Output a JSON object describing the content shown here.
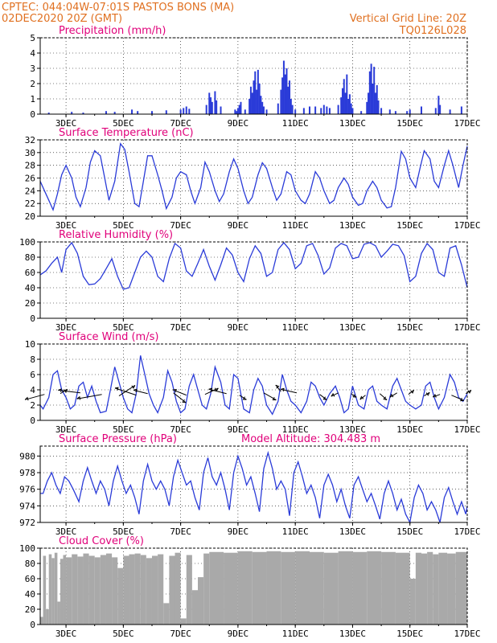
{
  "header": {
    "line1": "CPTEC:  044:04W-07:01S  PASTOS BONS (MA)",
    "line2": "02DEC2020 20Z (GMT)",
    "grid_note": "Vertical Grid Line: 20Z",
    "code": "TQ0126L028",
    "color": "#e07020"
  },
  "colors": {
    "title": "#e0007a",
    "line": "#2a3bd8",
    "bar": "#2a3bd8",
    "cloud": "#a9a9a9"
  },
  "x_axis": {
    "labels": [
      "3DEC",
      "5DEC",
      "7DEC",
      "9DEC",
      "11DEC",
      "13DEC",
      "15DEC",
      "17DEC"
    ],
    "days": [
      3,
      5,
      7,
      9,
      11,
      13,
      15,
      17
    ],
    "range_days": [
      2.1,
      17.0
    ]
  },
  "chart_data": [
    {
      "id": "precip",
      "type": "bar",
      "title": "Precipitation (mm/h)",
      "ylim": [
        0,
        5
      ],
      "yticks": [
        0,
        1,
        2,
        3,
        4,
        5
      ],
      "x": [
        2.4,
        3.2,
        3.6,
        4.4,
        4.7,
        5.3,
        5.5,
        6.0,
        6.5,
        7.0,
        7.1,
        7.2,
        7.3,
        7.9,
        8.0,
        8.05,
        8.1,
        8.2,
        8.25,
        8.4,
        8.9,
        8.95,
        9.0,
        9.05,
        9.1,
        9.25,
        9.4,
        9.45,
        9.5,
        9.55,
        9.6,
        9.65,
        9.7,
        9.75,
        9.8,
        9.85,
        9.9,
        10.0,
        10.4,
        10.5,
        10.55,
        10.6,
        10.65,
        10.7,
        10.75,
        10.8,
        10.85,
        10.9,
        11.0,
        11.3,
        11.5,
        11.7,
        11.9,
        12.0,
        12.1,
        12.2,
        12.5,
        12.6,
        12.65,
        12.7,
        12.75,
        12.8,
        12.85,
        12.9,
        12.95,
        13.0,
        13.3,
        13.5,
        13.55,
        13.6,
        13.65,
        13.7,
        13.75,
        13.8,
        13.85,
        13.9,
        14.0,
        14.3,
        14.5,
        14.9,
        15.0,
        15.4,
        15.9,
        16.0,
        16.05,
        16.4,
        16.8
      ],
      "values": [
        0.1,
        0.15,
        0.1,
        0.2,
        0.15,
        0.3,
        0.2,
        0.2,
        0.25,
        0.3,
        0.4,
        0.5,
        0.35,
        0.6,
        1.4,
        1.1,
        0.8,
        1.5,
        0.9,
        0.5,
        0.3,
        0.2,
        0.4,
        0.6,
        0.8,
        0.3,
        1.0,
        1.8,
        1.4,
        2.2,
        2.8,
        1.6,
        2.9,
        2.0,
        1.2,
        0.8,
        0.5,
        0.3,
        0.7,
        1.6,
        2.4,
        3.5,
        2.6,
        3.0,
        1.8,
        2.2,
        1.0,
        0.6,
        0.3,
        0.4,
        0.5,
        0.5,
        0.4,
        0.6,
        0.5,
        0.4,
        0.6,
        1.1,
        1.7,
        2.3,
        1.4,
        2.6,
        1.0,
        1.3,
        0.7,
        0.4,
        0.2,
        0.8,
        1.4,
        2.8,
        3.3,
        2.0,
        3.1,
        1.4,
        1.9,
        0.9,
        0.4,
        0.3,
        0.2,
        0.2,
        0.3,
        0.5,
        0.4,
        1.2,
        0.6,
        0.3,
        0.5
      ]
    },
    {
      "id": "temp",
      "type": "line",
      "title": "Surface Temperature (nC)",
      "ylim": [
        20,
        32
      ],
      "yticks": [
        20,
        22,
        24,
        26,
        28,
        30,
        32
      ],
      "x": [
        2.1,
        2.25,
        2.4,
        2.55,
        2.7,
        2.85,
        3.0,
        3.2,
        3.35,
        3.5,
        3.7,
        3.85,
        4.0,
        4.2,
        4.35,
        4.5,
        4.7,
        4.9,
        5.05,
        5.2,
        5.4,
        5.55,
        5.7,
        5.85,
        6.0,
        6.2,
        6.35,
        6.5,
        6.7,
        6.85,
        7.0,
        7.2,
        7.35,
        7.5,
        7.7,
        7.85,
        8.0,
        8.2,
        8.35,
        8.5,
        8.7,
        8.85,
        9.0,
        9.2,
        9.35,
        9.5,
        9.7,
        9.85,
        10.0,
        10.2,
        10.35,
        10.5,
        10.7,
        10.85,
        11.0,
        11.2,
        11.35,
        11.5,
        11.7,
        11.85,
        12.0,
        12.2,
        12.35,
        12.5,
        12.7,
        12.85,
        13.0,
        13.2,
        13.35,
        13.5,
        13.7,
        13.85,
        14.0,
        14.2,
        14.35,
        14.5,
        14.7,
        14.85,
        15.0,
        15.2,
        15.35,
        15.5,
        15.7,
        15.85,
        16.0,
        16.2,
        16.35,
        16.5,
        16.7,
        16.85,
        17.0
      ],
      "values": [
        25.5,
        24.0,
        22.5,
        21.0,
        23.5,
        26.5,
        28.0,
        26.0,
        23.0,
        21.5,
        24.5,
        28.5,
        30.3,
        29.5,
        26.0,
        22.5,
        25.5,
        31.4,
        30.5,
        27.0,
        22.0,
        21.5,
        25.5,
        29.5,
        29.5,
        26.5,
        24.0,
        21.2,
        23.0,
        26.0,
        27.0,
        26.5,
        24.0,
        22.0,
        24.5,
        28.5,
        27.0,
        24.0,
        22.3,
        23.5,
        27.0,
        29.0,
        27.5,
        24.0,
        22.0,
        23.0,
        26.5,
        28.4,
        27.5,
        24.5,
        22.5,
        23.5,
        27.0,
        26.5,
        24.0,
        22.5,
        22.0,
        23.5,
        27.0,
        26.0,
        24.0,
        22.0,
        22.5,
        24.5,
        26.0,
        25.0,
        23.0,
        21.7,
        22.0,
        24.0,
        25.5,
        24.5,
        22.5,
        21.3,
        21.5,
        24.5,
        30.2,
        29.0,
        26.0,
        24.5,
        27.5,
        30.3,
        29.0,
        25.5,
        24.5,
        28.0,
        30.3,
        28.0,
        24.5,
        28.0,
        31.0
      ]
    },
    {
      "id": "rh",
      "type": "line",
      "title": "Relative Humidity (%)",
      "ylim": [
        0,
        100
      ],
      "yticks": [
        0,
        20,
        40,
        60,
        80,
        100
      ],
      "x": [
        2.1,
        2.3,
        2.5,
        2.7,
        2.85,
        3.0,
        3.2,
        3.4,
        3.6,
        3.8,
        4.0,
        4.2,
        4.4,
        4.6,
        4.8,
        5.0,
        5.2,
        5.4,
        5.6,
        5.8,
        6.0,
        6.2,
        6.4,
        6.6,
        6.8,
        7.0,
        7.2,
        7.4,
        7.6,
        7.8,
        8.0,
        8.2,
        8.4,
        8.6,
        8.8,
        9.0,
        9.2,
        9.4,
        9.6,
        9.8,
        10.0,
        10.2,
        10.4,
        10.6,
        10.8,
        11.0,
        11.2,
        11.4,
        11.6,
        11.8,
        12.0,
        12.2,
        12.4,
        12.6,
        12.8,
        13.0,
        13.2,
        13.4,
        13.6,
        13.8,
        14.0,
        14.2,
        14.4,
        14.6,
        14.8,
        15.0,
        15.2,
        15.4,
        15.6,
        15.8,
        16.0,
        16.2,
        16.4,
        16.6,
        16.8,
        17.0
      ],
      "values": [
        57,
        62,
        72,
        80,
        60,
        90,
        99,
        85,
        55,
        44,
        45,
        52,
        65,
        78,
        55,
        38,
        40,
        60,
        80,
        88,
        80,
        55,
        48,
        78,
        98,
        92,
        62,
        55,
        72,
        90,
        68,
        50,
        70,
        92,
        83,
        60,
        48,
        78,
        95,
        85,
        55,
        60,
        90,
        99,
        90,
        65,
        72,
        95,
        98,
        82,
        58,
        66,
        92,
        98,
        95,
        78,
        80,
        97,
        99,
        95,
        80,
        88,
        97,
        95,
        82,
        48,
        55,
        85,
        98,
        90,
        60,
        55,
        92,
        95,
        70,
        40
      ]
    },
    {
      "id": "wind",
      "type": "line",
      "title": "Surface Wind (m/s)",
      "ylim": [
        0,
        10
      ],
      "yticks": [
        0,
        2,
        4,
        6,
        8,
        10
      ],
      "x": [
        2.1,
        2.2,
        2.4,
        2.55,
        2.7,
        2.85,
        3.0,
        3.15,
        3.3,
        3.45,
        3.6,
        3.75,
        3.9,
        4.05,
        4.2,
        4.4,
        4.55,
        4.7,
        4.85,
        5.0,
        5.15,
        5.3,
        5.45,
        5.6,
        5.75,
        5.9,
        6.05,
        6.2,
        6.4,
        6.55,
        6.7,
        6.85,
        7.0,
        7.15,
        7.3,
        7.45,
        7.6,
        7.75,
        7.9,
        8.05,
        8.2,
        8.4,
        8.55,
        8.7,
        8.85,
        9.0,
        9.2,
        9.4,
        9.55,
        9.7,
        9.85,
        10.0,
        10.2,
        10.4,
        10.55,
        10.7,
        10.85,
        11.0,
        11.2,
        11.4,
        11.55,
        11.7,
        11.85,
        12.0,
        12.2,
        12.4,
        12.55,
        12.7,
        12.85,
        13.0,
        13.2,
        13.4,
        13.55,
        13.7,
        13.85,
        14.0,
        14.2,
        14.4,
        14.55,
        14.7,
        14.85,
        15.0,
        15.2,
        15.4,
        15.55,
        15.7,
        15.85,
        16.0,
        16.2,
        16.4,
        16.55,
        16.7,
        16.85,
        17.0
      ],
      "values": [
        2.0,
        1.5,
        3.0,
        6.0,
        6.5,
        4.0,
        3.0,
        1.5,
        2.0,
        4.5,
        5.0,
        3.0,
        4.5,
        2.5,
        1.0,
        1.2,
        4.0,
        7.0,
        5.0,
        3.0,
        1.5,
        1.0,
        3.5,
        8.5,
        6.0,
        3.5,
        2.0,
        1.0,
        3.0,
        6.5,
        5.0,
        2.5,
        1.0,
        1.5,
        4.5,
        6.0,
        4.0,
        2.0,
        1.5,
        3.5,
        7.0,
        5.0,
        2.0,
        1.5,
        6.0,
        5.5,
        1.5,
        1.0,
        4.0,
        5.5,
        4.5,
        2.0,
        0.8,
        2.5,
        6.0,
        4.0,
        2.5,
        2.0,
        1.0,
        2.5,
        5.0,
        4.5,
        3.0,
        2.0,
        3.5,
        4.5,
        3.0,
        1.0,
        1.5,
        4.5,
        2.0,
        1.5,
        4.0,
        4.5,
        2.5,
        2.0,
        1.5,
        4.5,
        5.5,
        4.0,
        2.5,
        2.0,
        1.5,
        2.0,
        4.5,
        5.0,
        3.0,
        1.5,
        3.0,
        6.0,
        5.0,
        3.0,
        2.5,
        3.5
      ],
      "arrows_x": [
        2.25,
        2.8,
        3.5,
        4.25,
        4.85,
        5.45,
        5.85,
        6.75,
        7.2,
        7.85,
        8.6,
        9.05,
        9.9,
        10.5,
        11.05,
        11.85,
        12.5,
        12.95,
        13.45,
        13.95,
        14.55,
        14.95,
        15.5,
        16.05,
        16.45,
        16.95
      ],
      "arrows_y": [
        3.4,
        3.5,
        3.6,
        3.4,
        3.2,
        3.3,
        3.5,
        3.6,
        3.3,
        3.4,
        3.5,
        3.3,
        3.6,
        3.8,
        3.6,
        3.4,
        3.6,
        3.5,
        3.3,
        3.5,
        3.6,
        3.4,
        3.2,
        3.4,
        3.3,
        3.5
      ],
      "arrows_u": [
        -2.2,
        0.8,
        -2.5,
        -2.8,
        1.8,
        -2.4,
        -1.6,
        1.4,
        -1.5,
        1.5,
        -2.0,
        0.8,
        1.4,
        -0.6,
        -1.8,
        0.8,
        -0.8,
        0.6,
        -0.6,
        0.8,
        -0.8,
        0.6,
        0.6,
        -0.8,
        1.4,
        0.6
      ],
      "arrows_v": [
        -0.6,
        0.5,
        0.3,
        -0.5,
        1.2,
        0.8,
        0.4,
        -1.1,
        0.6,
        0.7,
        0.5,
        -0.5,
        -0.8,
        0.7,
        0.4,
        -0.6,
        -0.4,
        -0.4,
        -0.5,
        -0.7,
        -0.5,
        0.5,
        0.4,
        -0.3,
        -0.6,
        0.4
      ]
    },
    {
      "id": "pressure",
      "type": "line",
      "title": "Surface Pressure (hPa)",
      "annotation": "Model Altitude: 304.483  m",
      "ylim": [
        972,
        981.2
      ],
      "yticks": [
        972,
        974,
        976,
        978,
        980
      ],
      "x": [
        2.1,
        2.2,
        2.35,
        2.5,
        2.65,
        2.8,
        2.95,
        3.1,
        3.25,
        3.45,
        3.6,
        3.75,
        3.9,
        4.05,
        4.2,
        4.35,
        4.5,
        4.65,
        4.8,
        4.95,
        5.1,
        5.25,
        5.4,
        5.55,
        5.7,
        5.85,
        6.0,
        6.15,
        6.3,
        6.45,
        6.6,
        6.75,
        6.9,
        7.05,
        7.2,
        7.35,
        7.5,
        7.65,
        7.8,
        7.95,
        8.1,
        8.25,
        8.4,
        8.55,
        8.7,
        8.85,
        9.0,
        9.15,
        9.3,
        9.45,
        9.6,
        9.75,
        9.9,
        10.05,
        10.2,
        10.35,
        10.5,
        10.65,
        10.8,
        10.95,
        11.1,
        11.25,
        11.4,
        11.55,
        11.7,
        11.85,
        12.0,
        12.15,
        12.3,
        12.45,
        12.6,
        12.75,
        12.9,
        13.05,
        13.2,
        13.35,
        13.5,
        13.65,
        13.8,
        13.95,
        14.1,
        14.25,
        14.4,
        14.55,
        14.7,
        14.85,
        15.0,
        15.15,
        15.3,
        15.45,
        15.6,
        15.75,
        15.9,
        16.05,
        16.2,
        16.35,
        16.5,
        16.65,
        16.8,
        16.95,
        17.0
      ],
      "values": [
        975.5,
        975.5,
        977.0,
        978.0,
        976.5,
        975.5,
        977.5,
        977.0,
        976.0,
        974.5,
        977.0,
        978.6,
        977.0,
        975.5,
        977.0,
        976.0,
        974.0,
        977.0,
        978.8,
        977.0,
        975.5,
        976.5,
        975.0,
        973.0,
        977.0,
        979.0,
        977.0,
        976.0,
        977.0,
        976.0,
        974.0,
        977.5,
        979.5,
        978.0,
        976.5,
        977.0,
        975.0,
        973.5,
        978.0,
        979.8,
        977.5,
        976.5,
        978.0,
        976.0,
        973.5,
        978.0,
        980.0,
        978.5,
        976.5,
        977.5,
        975.5,
        973.3,
        978.5,
        980.4,
        978.5,
        976.0,
        977.0,
        976.0,
        972.8,
        978.0,
        979.3,
        977.5,
        975.5,
        976.5,
        975.0,
        972.5,
        976.5,
        977.8,
        976.5,
        974.5,
        976.0,
        974.0,
        972.5,
        976.5,
        977.5,
        976.0,
        974.5,
        975.5,
        974.0,
        972.4,
        975.5,
        977.0,
        975.5,
        973.5,
        974.8,
        973.0,
        972.0,
        975.0,
        976.5,
        975.5,
        973.5,
        974.5,
        973.5,
        971.8,
        975.0,
        976.2,
        974.5,
        973.0,
        974.5,
        973.0,
        974.0
      ]
    },
    {
      "id": "cloud",
      "type": "area",
      "title": "Cloud Cover (%)",
      "ylim": [
        0,
        100
      ],
      "yticks": [
        0,
        20,
        40,
        60,
        80,
        100
      ],
      "x": [
        2.1,
        2.2,
        2.3,
        2.4,
        2.5,
        2.6,
        2.7,
        2.8,
        2.9,
        3.0,
        3.2,
        3.4,
        3.6,
        3.8,
        4.0,
        4.2,
        4.4,
        4.6,
        4.8,
        5.0,
        5.2,
        5.4,
        5.6,
        5.8,
        6.0,
        6.2,
        6.4,
        6.6,
        6.8,
        7.0,
        7.2,
        7.4,
        7.6,
        7.8,
        8.0,
        8.5,
        9.0,
        9.5,
        10.0,
        10.5,
        11.0,
        11.5,
        12.0,
        12.5,
        13.0,
        13.5,
        14.0,
        14.5,
        15.0,
        15.2,
        15.4,
        15.6,
        15.8,
        16.0,
        16.3,
        16.6,
        17.0
      ],
      "values": [
        10,
        90,
        20,
        92,
        87,
        94,
        30,
        86,
        91,
        88,
        92,
        89,
        93,
        90,
        88,
        91,
        93,
        88,
        74,
        90,
        92,
        93,
        91,
        87,
        90,
        92,
        28,
        90,
        94,
        8,
        91,
        45,
        62,
        93,
        95,
        94,
        96,
        95,
        96,
        95,
        96,
        95,
        94,
        96,
        95,
        96,
        95,
        94,
        60,
        94,
        93,
        95,
        92,
        94,
        93,
        95,
        94
      ]
    }
  ]
}
